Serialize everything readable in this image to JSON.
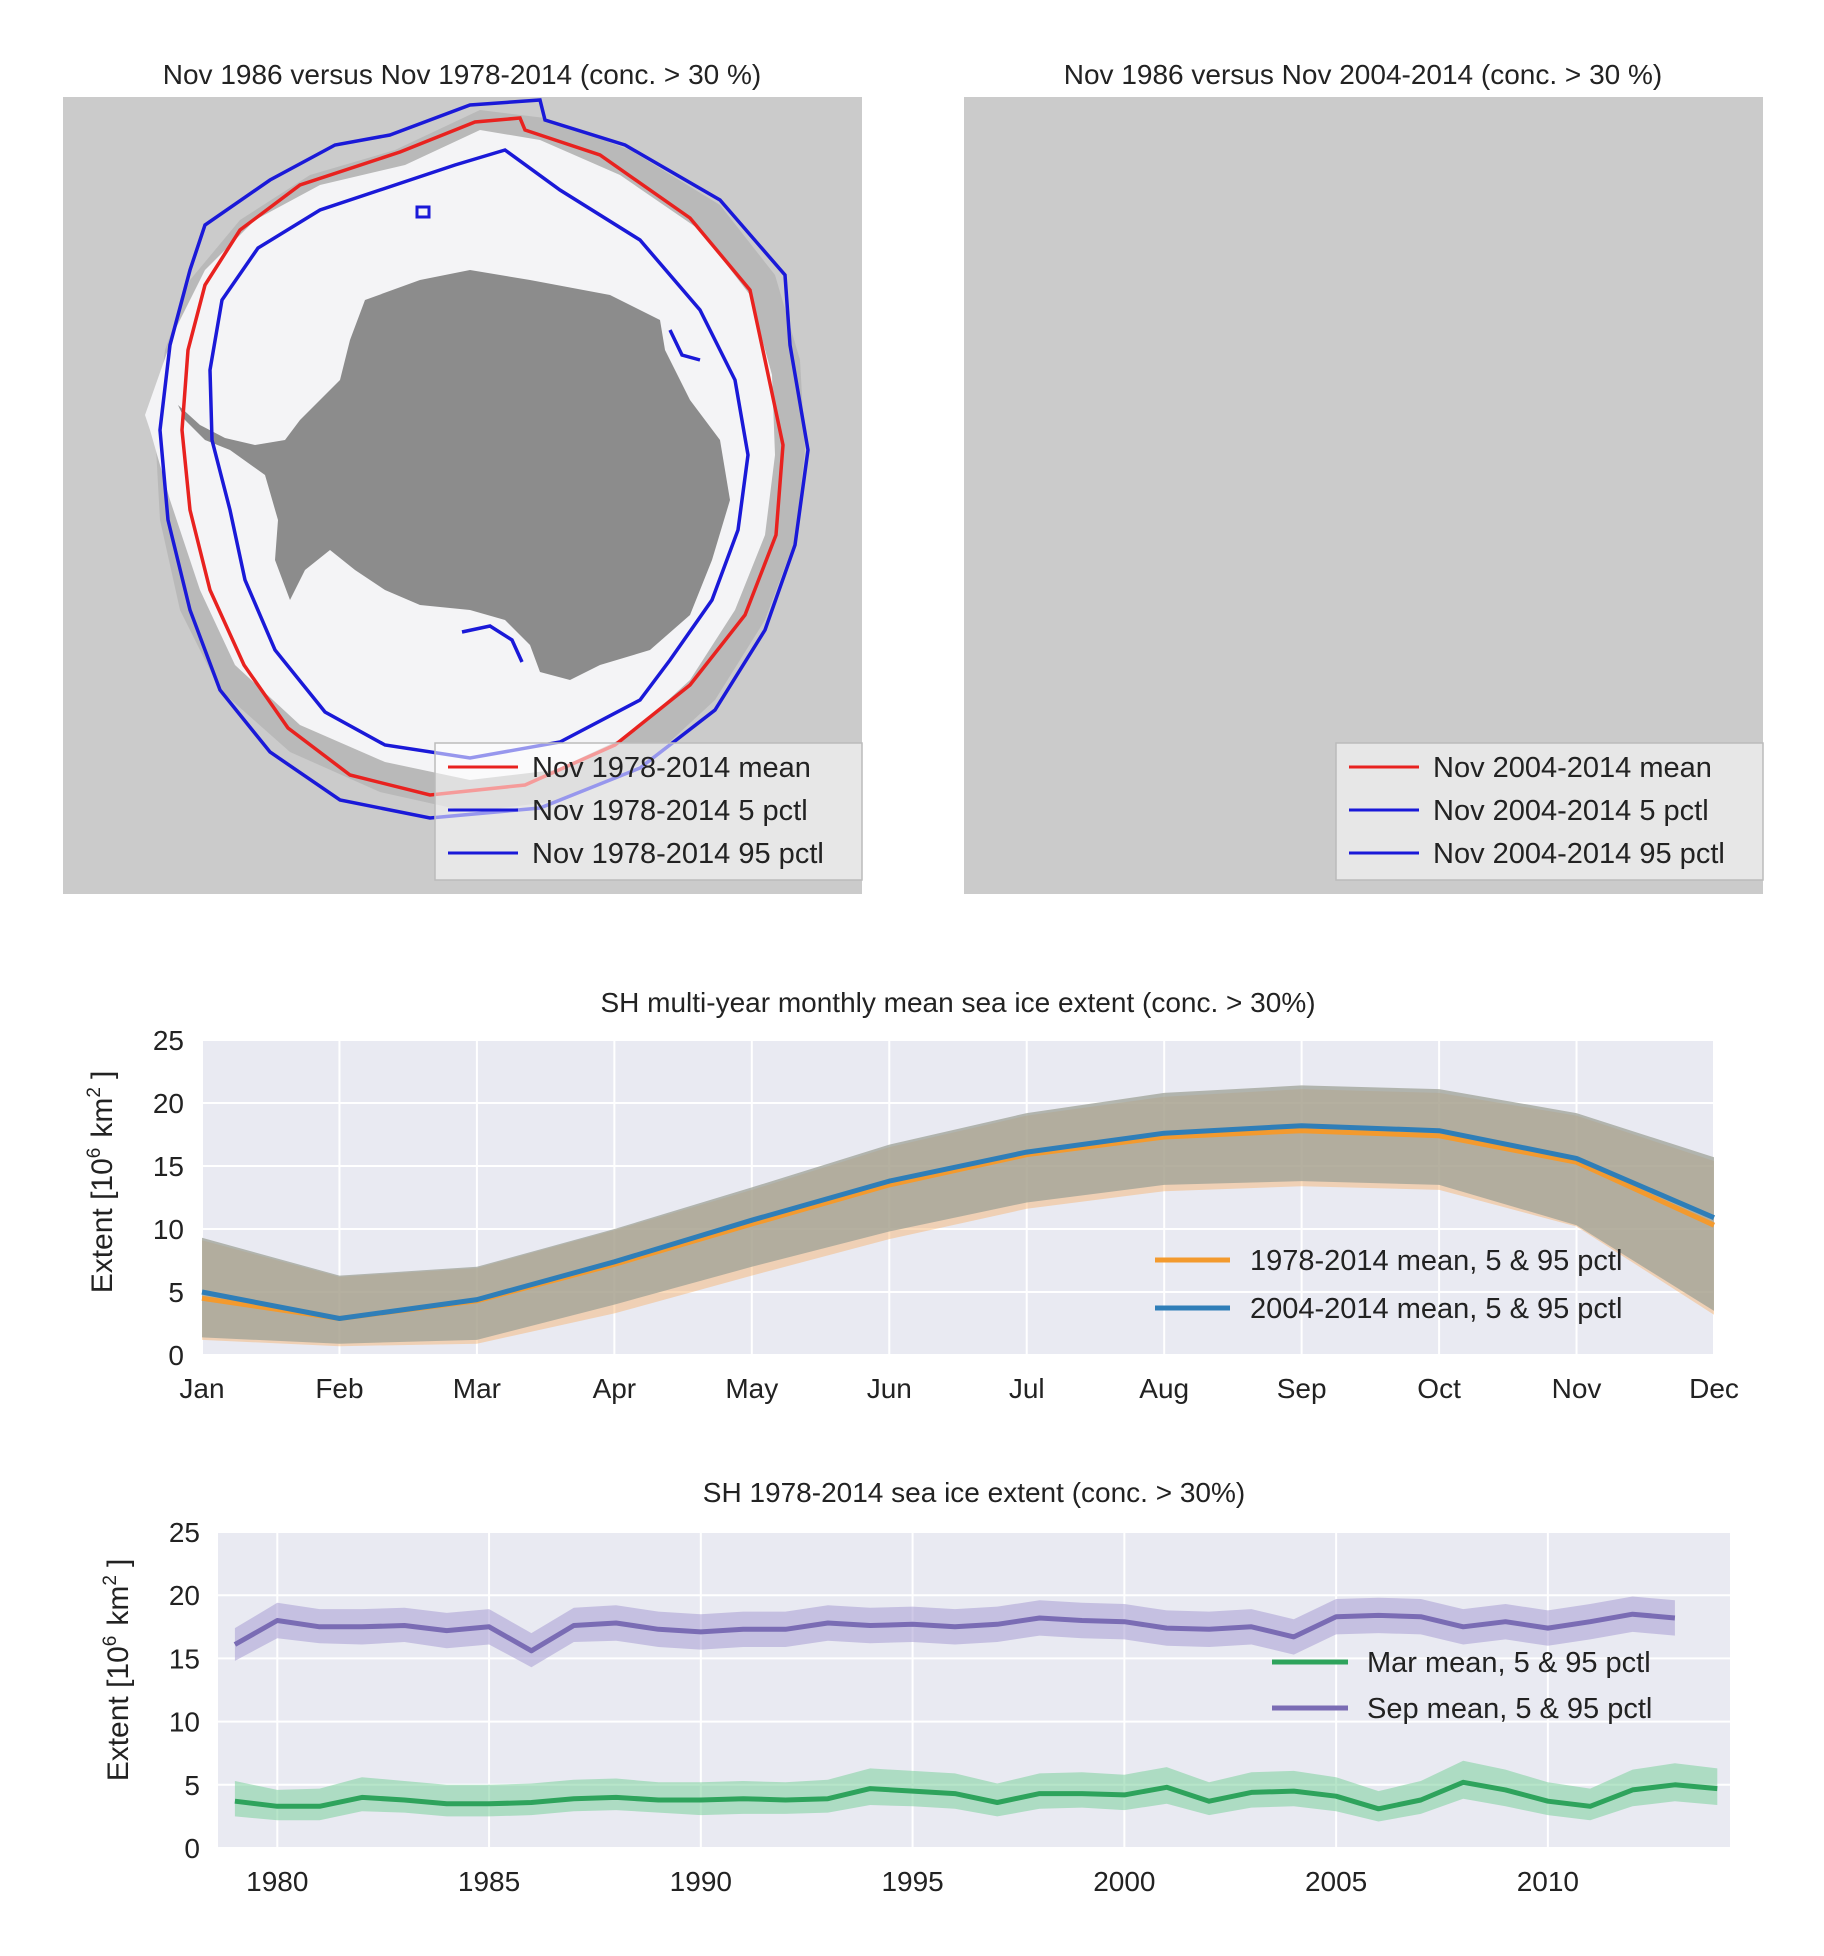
{
  "maps": [
    {
      "title": "Nov 1986 versus Nov 1978-2014 (conc. > 30 %)",
      "legend": [
        "Nov 1978-2014 mean",
        "Nov 1978-2014 5 pctl",
        "Nov 1978-2014 95 pctl"
      ]
    },
    {
      "title": "Nov 1986 versus Nov 2004-2014 (conc. > 30 %)",
      "legend": [
        "Nov 2004-2014 mean",
        "Nov 2004-2014 5 pctl",
        "Nov 2004-2014 95 pctl"
      ]
    }
  ],
  "colors": {
    "mean_line": "#e8221f",
    "pctl_line": "#1a19d8",
    "ocean": "#cbcbcb",
    "land": "#8c8c8c",
    "ice": "#f4f4f6",
    "grey_band": "#b9b9b9",
    "plot_bg": "#e9eaf2",
    "grid": "#ffffff",
    "orange": "#f39a2e",
    "blue": "#2f7eb8",
    "green": "#2ea35c",
    "purple": "#7a6cb4"
  },
  "chart_data": [
    {
      "type": "line",
      "title": "SH multi-year monthly mean sea ice extent (conc. > 30%)",
      "ylabel_main": "Extent [10",
      "ylabel_sup": "6",
      "ylabel_unit": "km",
      "ylabel_sup2": "2",
      "ylabel_close": "]",
      "xlabel": "",
      "categories": [
        "Jan",
        "Feb",
        "Mar",
        "Apr",
        "May",
        "Jun",
        "Jul",
        "Aug",
        "Sep",
        "Oct",
        "Nov",
        "Dec"
      ],
      "ylim": [
        0,
        25
      ],
      "yticks": [
        "0",
        "5",
        "10",
        "15",
        "20",
        "25"
      ],
      "grid": true,
      "legend_position": "lower-right",
      "series": [
        {
          "name": "1978-2014 mean, 5 & 95 pctl",
          "color": "#f39a2e",
          "mean": [
            4.5,
            2.9,
            4.3,
            7.2,
            10.4,
            13.5,
            15.9,
            17.3,
            17.8,
            17.4,
            15.3,
            10.3
          ],
          "p5": [
            1.2,
            0.7,
            0.9,
            3.3,
            6.3,
            9.2,
            11.6,
            13.0,
            13.4,
            13.1,
            10.2,
            3.2
          ],
          "p95": [
            9.1,
            6.2,
            6.9,
            9.9,
            13.1,
            16.5,
            19.0,
            20.5,
            21.1,
            20.8,
            19.0,
            15.4
          ]
        },
        {
          "name": "2004-2014 mean, 5 & 95 pctl",
          "color": "#2f7eb8",
          "mean": [
            5.0,
            2.9,
            4.4,
            7.4,
            10.7,
            13.8,
            16.1,
            17.6,
            18.2,
            17.8,
            15.6,
            10.9
          ],
          "p5": [
            1.4,
            0.9,
            1.2,
            4.0,
            7.0,
            9.8,
            12.1,
            13.5,
            13.8,
            13.5,
            10.3,
            3.5
          ],
          "p95": [
            9.3,
            6.3,
            7.0,
            10.0,
            13.3,
            16.7,
            19.2,
            20.8,
            21.4,
            21.1,
            19.2,
            15.7
          ]
        }
      ]
    },
    {
      "type": "line",
      "title": "SH 1978-2014 sea ice extent (conc. > 30%)",
      "ylabel_main": "Extent [10",
      "ylabel_sup": "6",
      "ylabel_unit": "km",
      "ylabel_sup2": "2",
      "ylabel_close": "]",
      "xlabel": "",
      "xlim": [
        1978.6,
        2014.3
      ],
      "xticks": [
        "1980",
        "1985",
        "1990",
        "1995",
        "2000",
        "2005",
        "2010"
      ],
      "ylim": [
        0,
        25
      ],
      "yticks": [
        "0",
        "5",
        "10",
        "15",
        "20",
        "25"
      ],
      "grid": true,
      "legend_position": "center-right",
      "series": [
        {
          "name": "Mar mean, 5 & 95 pctl",
          "color": "#2ea35c",
          "x": [
            1979,
            1980,
            1981,
            1982,
            1983,
            1984,
            1985,
            1986,
            1987,
            1988,
            1989,
            1990,
            1991,
            1992,
            1993,
            1994,
            1995,
            1996,
            1997,
            1998,
            1999,
            2000,
            2001,
            2002,
            2003,
            2004,
            2005,
            2006,
            2007,
            2008,
            2009,
            2010,
            2011,
            2012,
            2013,
            2014
          ],
          "mean": [
            3.7,
            3.3,
            3.3,
            4.0,
            3.8,
            3.5,
            3.5,
            3.6,
            3.9,
            4.0,
            3.8,
            3.8,
            3.9,
            3.8,
            3.9,
            4.7,
            4.5,
            4.3,
            3.6,
            4.3,
            4.3,
            4.2,
            4.8,
            3.7,
            4.4,
            4.5,
            4.1,
            3.1,
            3.8,
            5.2,
            4.6,
            3.7,
            3.3,
            4.6,
            5.0,
            4.7
          ],
          "p5": [
            2.5,
            2.2,
            2.2,
            2.9,
            2.8,
            2.5,
            2.5,
            2.6,
            2.9,
            3.0,
            2.8,
            2.6,
            2.7,
            2.7,
            2.8,
            3.4,
            3.3,
            3.1,
            2.5,
            3.1,
            3.2,
            3.0,
            3.5,
            2.6,
            3.2,
            3.3,
            2.9,
            2.1,
            2.7,
            3.9,
            3.3,
            2.6,
            2.2,
            3.3,
            3.7,
            3.4
          ],
          "p95": [
            5.3,
            4.6,
            4.7,
            5.6,
            5.3,
            5.0,
            5.0,
            5.1,
            5.4,
            5.5,
            5.2,
            5.2,
            5.3,
            5.2,
            5.4,
            6.3,
            6.1,
            5.9,
            5.1,
            5.9,
            6.0,
            5.8,
            6.4,
            5.2,
            6.0,
            6.1,
            5.6,
            4.5,
            5.3,
            6.9,
            6.2,
            5.2,
            4.7,
            6.2,
            6.7,
            6.3
          ]
        },
        {
          "name": "Sep mean, 5 & 95 pctl",
          "color": "#7a6cb4",
          "x": [
            1979,
            1980,
            1981,
            1982,
            1983,
            1984,
            1985,
            1986,
            1987,
            1988,
            1989,
            1990,
            1991,
            1992,
            1993,
            1994,
            1995,
            1996,
            1997,
            1998,
            1999,
            2000,
            2001,
            2002,
            2003,
            2004,
            2005,
            2006,
            2007,
            2008,
            2009,
            2010,
            2011,
            2012,
            2013
          ],
          "mean": [
            16.1,
            18.0,
            17.5,
            17.5,
            17.6,
            17.2,
            17.5,
            15.6,
            17.6,
            17.8,
            17.3,
            17.1,
            17.3,
            17.3,
            17.8,
            17.6,
            17.7,
            17.5,
            17.7,
            18.2,
            18.0,
            17.9,
            17.4,
            17.3,
            17.5,
            16.7,
            18.3,
            18.4,
            18.3,
            17.5,
            17.9,
            17.4,
            17.9,
            18.5,
            18.2
          ],
          "p5": [
            14.8,
            16.6,
            16.2,
            16.1,
            16.3,
            15.8,
            16.1,
            14.3,
            16.3,
            16.4,
            15.9,
            15.7,
            15.9,
            15.9,
            16.4,
            16.2,
            16.3,
            16.1,
            16.3,
            16.8,
            16.6,
            16.5,
            16.0,
            15.9,
            16.1,
            15.3,
            16.9,
            17.0,
            16.9,
            16.1,
            16.5,
            16.0,
            16.5,
            17.1,
            16.8
          ],
          "p95": [
            17.4,
            19.4,
            18.9,
            18.9,
            19.0,
            18.6,
            18.9,
            17.0,
            19.0,
            19.2,
            18.7,
            18.5,
            18.7,
            18.7,
            19.2,
            19.0,
            19.1,
            18.9,
            19.1,
            19.6,
            19.4,
            19.3,
            18.8,
            18.7,
            18.9,
            18.1,
            19.7,
            19.8,
            19.7,
            18.9,
            19.3,
            18.8,
            19.3,
            19.9,
            19.6
          ]
        }
      ]
    }
  ]
}
